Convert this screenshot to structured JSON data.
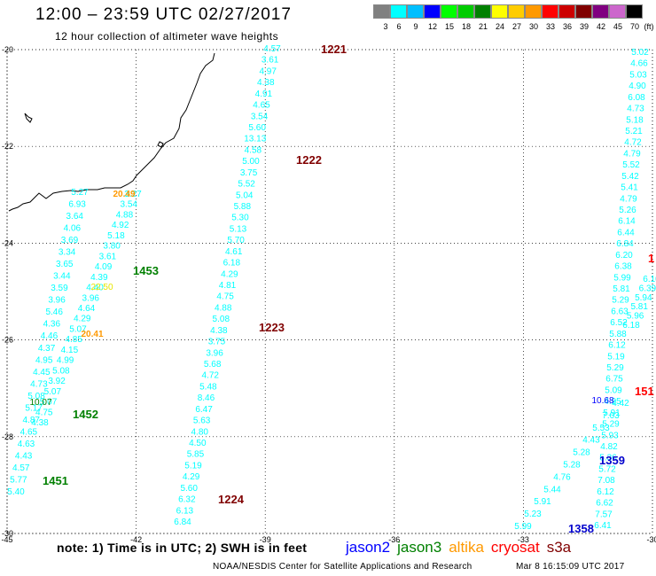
{
  "header": {
    "title": "12:00 – 23:59 UTC 02/27/2017",
    "subtitle": "12 hour collection of altimeter wave heights"
  },
  "legend": {
    "unit": "(ft)",
    "entries": [
      {
        "label": "3",
        "color": "#808080"
      },
      {
        "label": "6",
        "color": "#00ffff"
      },
      {
        "label": "9",
        "color": "#00bfff"
      },
      {
        "label": "12",
        "color": "#0000ff"
      },
      {
        "label": "15",
        "color": "#00ff00"
      },
      {
        "label": "18",
        "color": "#00cc00"
      },
      {
        "label": "21",
        "color": "#008000"
      },
      {
        "label": "24",
        "color": "#ffff00"
      },
      {
        "label": "27",
        "color": "#ffcc00"
      },
      {
        "label": "30",
        "color": "#ff9900"
      },
      {
        "label": "33",
        "color": "#ff0000"
      },
      {
        "label": "36",
        "color": "#cc0000"
      },
      {
        "label": "39",
        "color": "#800000"
      },
      {
        "label": "42",
        "color": "#800080"
      },
      {
        "label": "45",
        "color": "#cc66cc"
      },
      {
        "label": "70",
        "color": "#000000"
      }
    ]
  },
  "map": {
    "lon_range": [
      -45,
      -30
    ],
    "lat_range": [
      -30,
      -20
    ],
    "x_ticks": [
      "-45",
      "-42",
      "-39",
      "-36",
      "-33",
      "-30"
    ],
    "y_ticks": [
      "-20",
      "-22",
      "-24",
      "-26",
      "-28",
      "-30"
    ],
    "grid": "dotted",
    "tracks": [
      {
        "color": "#00ffff",
        "values": [
          "4.57",
          "3.61",
          "4.97",
          "4.38",
          "4.91",
          "4.65",
          "3.54",
          "5.60",
          "13.13",
          "4.58",
          "5.00",
          "3.75",
          "5.52",
          "5.04",
          "5.88",
          "5.30",
          "5.13",
          "5.70",
          "4.61",
          "6.18",
          "4.29",
          "4.81",
          "4.75",
          "4.88",
          "5.08",
          "4.38",
          "3.75",
          "3.96",
          "5.68",
          "4.72",
          "5.48",
          "8.46",
          "6.47",
          "5.63",
          "4.80",
          "4.50",
          "5.85",
          "5.19",
          "4.29",
          "5.60",
          "6.32",
          "6.13",
          "6.84"
        ]
      },
      {
        "color": "#00ffff",
        "values": [
          "5.27",
          "6.93",
          "3.64",
          "4.06",
          "3.69",
          "3.34",
          "3.65",
          "3.44",
          "3.59",
          "3.96",
          "5.46",
          "4.36",
          "4.46",
          "4.37",
          "4.95",
          "4.45",
          "4.73",
          "5.08",
          "5.17",
          "4.87",
          "4.65",
          "4.63",
          "4.43",
          "4.57",
          "5.77",
          "5.40"
        ]
      },
      {
        "color": "#00ffff",
        "values": [
          "3.27",
          "3.54",
          "4.88",
          "4.92",
          "5.18",
          "3.80",
          "3.61",
          "4.09",
          "4.39",
          "4.40",
          "3.96",
          "4.64",
          "4.29",
          "5.07",
          "4.85",
          "4.15",
          "4.99",
          "5.08",
          "3.92",
          "5.07",
          "5.07",
          "4.75",
          "4.38"
        ]
      },
      {
        "color": "#00ffff",
        "values": [
          "5.02",
          "4.66",
          "5.03",
          "4.90",
          "6.08",
          "4.73",
          "5.18",
          "5.21",
          "4.72",
          "4.79",
          "5.52",
          "5.42",
          "5.41",
          "4.79",
          "5.26",
          "6.14",
          "6.44",
          "6.84",
          "6.20",
          "6.38",
          "5.99",
          "5.81",
          "5.29",
          "6.63",
          "6.52",
          "5.88",
          "6.12",
          "5.19",
          "5.29",
          "6.75",
          "5.09",
          "4.95",
          "5.91",
          "5.29",
          "5.93",
          "4.82",
          "5.36",
          "5.72",
          "7.08",
          "6.12",
          "6.62",
          "7.57",
          "6.41"
        ]
      },
      {
        "color": "#00ffff",
        "values": [
          "4.42",
          "7.03",
          "5.53",
          "4.43",
          "5.28",
          "5.28",
          "4.76",
          "5.44",
          "5.91",
          "5.23",
          "5.99"
        ]
      },
      {
        "color": "#00ffff",
        "values": [
          "6.10",
          "6.39",
          "5.94",
          "5.81",
          "5.96",
          "6.18"
        ]
      }
    ],
    "orange_values": [
      "20.49",
      "20.41"
    ],
    "yellow_values": [
      "22.50"
    ],
    "green_values": [
      "10.07"
    ],
    "blue_values": [
      "10.68"
    ],
    "time_labels": [
      {
        "text": "1221",
        "color": "#800000"
      },
      {
        "text": "1222",
        "color": "#800000"
      },
      {
        "text": "1223",
        "color": "#800000"
      },
      {
        "text": "1224",
        "color": "#800000"
      },
      {
        "text": "1453",
        "color": "#008000"
      },
      {
        "text": "1452",
        "color": "#008000"
      },
      {
        "text": "1451",
        "color": "#008000"
      },
      {
        "text": "1359",
        "color": "#0000cc"
      },
      {
        "text": "1358",
        "color": "#0000cc"
      },
      {
        "text": "151",
        "color": "#ff0000"
      },
      {
        "text": "1",
        "color": "#ff0000"
      }
    ]
  },
  "footer": {
    "note": "note:  1) Time is in UTC;  2) SWH is in feet",
    "satellites": [
      {
        "name": "jason2",
        "color": "#0000ff"
      },
      {
        "name": "jason3",
        "color": "#008000"
      },
      {
        "name": "altika",
        "color": "#ff9900"
      },
      {
        "name": "cryosat",
        "color": "#ff0000"
      },
      {
        "name": "s3a",
        "color": "#800000"
      }
    ],
    "credit": "NOAA/NESDIS Center for Satellite Applications and Research",
    "timestamp": "Mar  8 16:15:09 UTC 2017"
  }
}
